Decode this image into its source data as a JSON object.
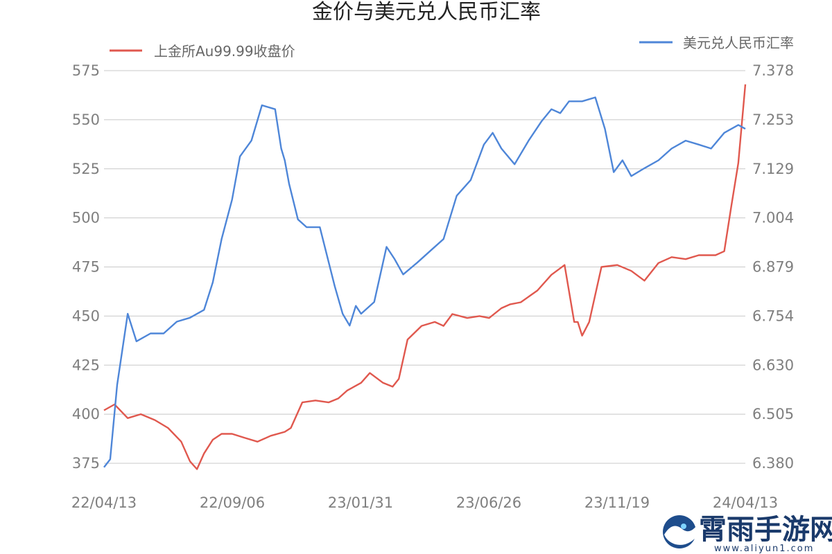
{
  "chart_data": {
    "type": "line",
    "title": "金价与美元兑人民币汇率",
    "xlabel": "",
    "ylabel_left": "",
    "ylabel_right": "",
    "x_tick_labels": [
      "22/04/13",
      "22/09/06",
      "23/01/31",
      "23/06/26",
      "23/11/19",
      "24/04/13"
    ],
    "y_left_ticks": [
      "575",
      "550",
      "525",
      "500",
      "475",
      "450",
      "425",
      "400",
      "375"
    ],
    "y_left_range": [
      375,
      575
    ],
    "y_right_ticks": [
      "7.378",
      "7.253",
      "7.129",
      "7.004",
      "6.879",
      "6.754",
      "6.630",
      "6.505",
      "6.380"
    ],
    "y_right_range": [
      6.38,
      7.378
    ],
    "grid": true,
    "legend": [
      {
        "label": "上金所Au99.99收盘价",
        "placement": "top-left"
      },
      {
        "label": "美元兑人民币汇率",
        "placement": "top-right"
      }
    ],
    "series": [
      {
        "name": "上金所Au99.99收盘价",
        "axis": "left",
        "color": "#e0584e",
        "x": [
          "2022-04-13",
          "2022-04-25",
          "2022-05-10",
          "2022-05-25",
          "2022-06-10",
          "2022-06-25",
          "2022-07-10",
          "2022-07-20",
          "2022-07-28",
          "2022-08-05",
          "2022-08-15",
          "2022-08-25",
          "2022-09-06",
          "2022-09-20",
          "2022-10-05",
          "2022-10-20",
          "2022-11-05",
          "2022-11-12",
          "2022-11-25",
          "2022-12-10",
          "2022-12-25",
          "2023-01-05",
          "2023-01-15",
          "2023-01-31",
          "2023-02-10",
          "2023-02-25",
          "2023-03-08",
          "2023-03-15",
          "2023-03-25",
          "2023-04-10",
          "2023-04-25",
          "2023-05-05",
          "2023-05-15",
          "2023-06-01",
          "2023-06-15",
          "2023-06-26",
          "2023-07-10",
          "2023-07-20",
          "2023-08-01",
          "2023-08-20",
          "2023-09-05",
          "2023-09-20",
          "2023-10-01",
          "2023-10-05",
          "2023-10-10",
          "2023-10-18",
          "2023-11-01",
          "2023-11-19",
          "2023-12-05",
          "2023-12-20",
          "2024-01-05",
          "2024-01-20",
          "2024-02-05",
          "2024-02-20",
          "2024-03-01",
          "2024-03-10",
          "2024-03-20",
          "2024-03-28",
          "2024-04-05",
          "2024-04-13"
        ],
        "values": [
          402,
          405,
          398,
          400,
          397,
          393,
          386,
          376,
          372,
          380,
          387,
          390,
          390,
          388,
          386,
          389,
          391,
          393,
          406,
          407,
          406,
          408,
          412,
          416,
          421,
          416,
          414,
          418,
          438,
          445,
          447,
          445,
          451,
          449,
          450,
          449,
          454,
          456,
          457,
          463,
          471,
          476,
          447,
          447,
          440,
          447,
          475,
          476,
          473,
          468,
          477,
          480,
          479,
          481,
          481,
          481,
          483,
          506,
          528,
          568
        ]
      },
      {
        "name": "美元兑人民币汇率",
        "axis": "right",
        "color": "#4e86d8",
        "x": [
          "2022-04-13",
          "2022-04-20",
          "2022-04-28",
          "2022-05-10",
          "2022-05-20",
          "2022-06-05",
          "2022-06-20",
          "2022-07-05",
          "2022-07-20",
          "2022-08-05",
          "2022-08-15",
          "2022-08-25",
          "2022-09-06",
          "2022-09-15",
          "2022-09-28",
          "2022-10-10",
          "2022-10-25",
          "2022-11-01",
          "2022-11-05",
          "2022-11-10",
          "2022-11-20",
          "2022-11-30",
          "2022-12-15",
          "2023-01-01",
          "2023-01-10",
          "2023-01-18",
          "2023-01-25",
          "2023-01-31",
          "2023-02-15",
          "2023-03-01",
          "2023-03-10",
          "2023-03-20",
          "2023-04-05",
          "2023-04-20",
          "2023-05-05",
          "2023-05-20",
          "2023-06-05",
          "2023-06-20",
          "2023-06-30",
          "2023-07-10",
          "2023-07-25",
          "2023-08-10",
          "2023-08-25",
          "2023-09-05",
          "2023-09-15",
          "2023-09-25",
          "2023-10-10",
          "2023-10-25",
          "2023-11-05",
          "2023-11-15",
          "2023-11-25",
          "2023-12-05",
          "2023-12-20",
          "2024-01-05",
          "2024-01-20",
          "2024-02-05",
          "2024-02-20",
          "2024-03-05",
          "2024-03-20",
          "2024-04-05",
          "2024-04-13"
        ],
        "values": [
          6.37,
          6.39,
          6.58,
          6.76,
          6.69,
          6.71,
          6.71,
          6.74,
          6.75,
          6.77,
          6.84,
          6.95,
          7.05,
          7.16,
          7.2,
          7.29,
          7.28,
          7.18,
          7.15,
          7.09,
          7.0,
          6.98,
          6.98,
          6.83,
          6.76,
          6.73,
          6.78,
          6.76,
          6.79,
          6.93,
          6.9,
          6.86,
          6.89,
          6.92,
          6.95,
          7.06,
          7.1,
          7.19,
          7.22,
          7.18,
          7.14,
          7.2,
          7.25,
          7.28,
          7.27,
          7.3,
          7.3,
          7.31,
          7.23,
          7.12,
          7.15,
          7.11,
          7.13,
          7.15,
          7.18,
          7.2,
          7.19,
          7.18,
          7.22,
          7.24,
          7.23
        ]
      }
    ]
  },
  "watermark": {
    "text": "霄雨手游网",
    "url": "www.aliyun1.com",
    "icon": "fish-wave-logo-icon"
  }
}
